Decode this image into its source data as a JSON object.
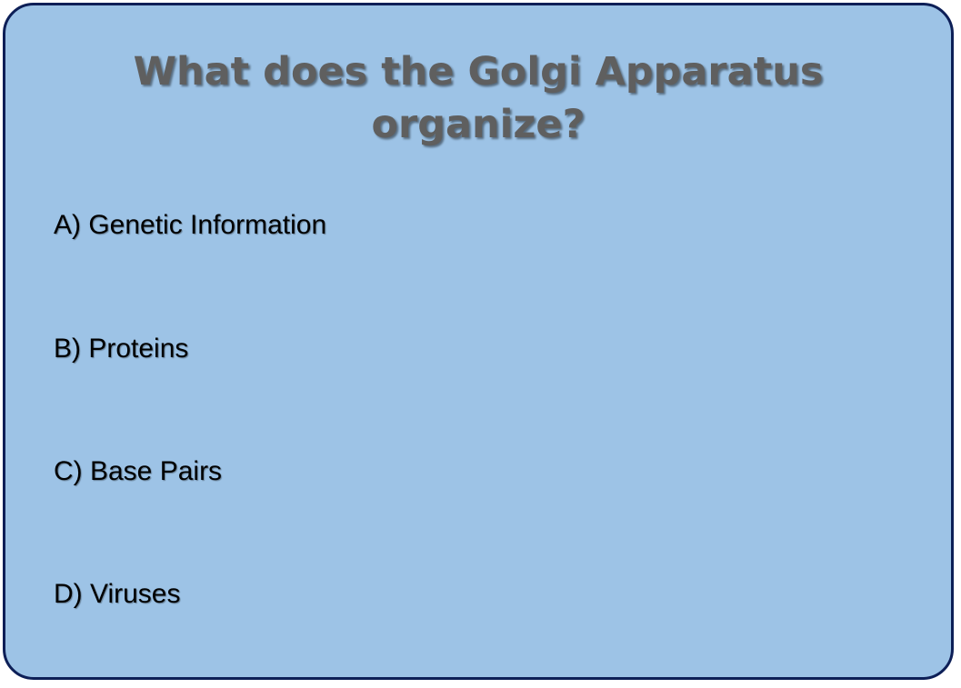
{
  "slide": {
    "title_line1": "What does the Golgi Apparatus",
    "title_line2": "organize?",
    "options": [
      {
        "label": "A) Genetic Information"
      },
      {
        "label": "B) Proteins"
      },
      {
        "label": "C) Base Pairs"
      },
      {
        "label": "D) Viruses"
      }
    ],
    "colors": {
      "card_background": "#9dc3e6",
      "card_border": "#0d1f57",
      "title_text": "#5f5f5f",
      "option_text": "#000000"
    }
  }
}
